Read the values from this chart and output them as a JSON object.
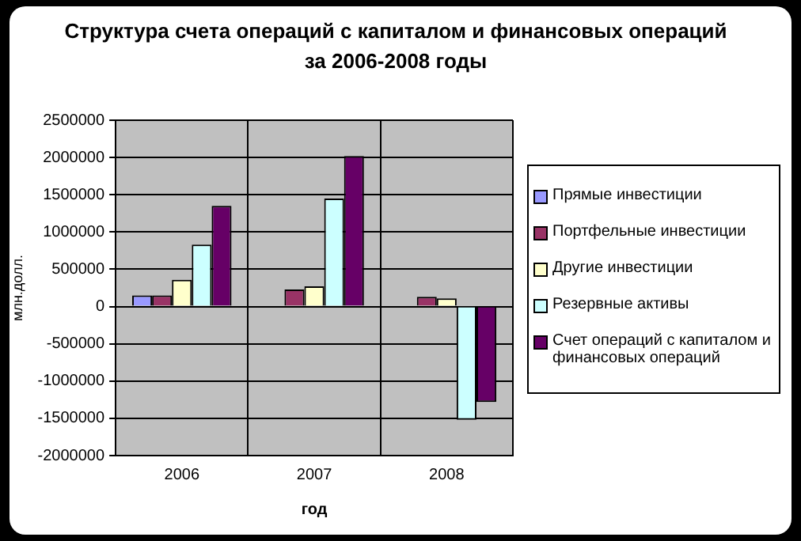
{
  "chart_data": {
    "type": "bar",
    "title": "Структура счета операций с капиталом и финансовых операций за 2006-2008 годы",
    "xlabel": "год",
    "ylabel": "млн.долл.",
    "categories": [
      "2006",
      "2007",
      "2008"
    ],
    "series": [
      {
        "name": "Прямые инвестиции",
        "color": "#9999ff",
        "values": [
          150000,
          null,
          null
        ]
      },
      {
        "name": "Портфельные инвестиции",
        "color": "#993366",
        "values": [
          150000,
          230000,
          130000
        ]
      },
      {
        "name": "Другие инвестиции",
        "color": "#ffffcc",
        "values": [
          360000,
          270000,
          110000
        ]
      },
      {
        "name": "Резервные активы",
        "color": "#ccffff",
        "values": [
          830000,
          1450000,
          -1520000
        ]
      },
      {
        "name": "Счет операций с капиталом и финансовых операций",
        "color": "#660066",
        "values": [
          1350000,
          2020000,
          -1280000
        ]
      }
    ],
    "ylim": [
      -2000000,
      2500000
    ],
    "yticks": [
      -2000000,
      -1500000,
      -1000000,
      -500000,
      0,
      500000,
      1000000,
      1500000,
      2000000,
      2500000
    ],
    "grid": true,
    "legend": "right"
  }
}
